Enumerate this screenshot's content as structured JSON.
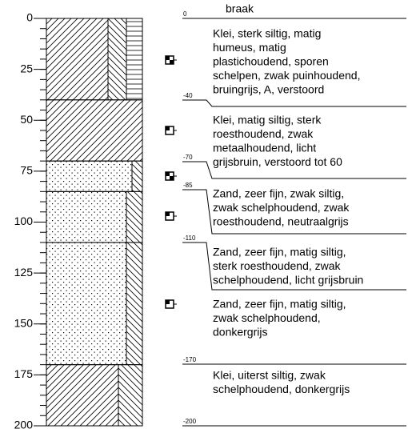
{
  "axis_ticks": [
    0,
    25,
    50,
    75,
    100,
    125,
    150,
    175,
    200
  ],
  "top_label": "braak",
  "depth_labels": [
    "0",
    "-40",
    "-70",
    "-85",
    "-110",
    "-170",
    "-200"
  ],
  "descriptions": [
    [
      "Klei, sterk siltig, matig",
      "humeus, matig",
      "plastichoudend, sporen",
      "schelpen, zwak puinhoudend,",
      "bruingrijs, A, verstoord"
    ],
    [
      "Klei, matig siltig, sterk",
      "roesthoudend, zwak",
      "metaalhoudend, licht",
      "grijsbruin, verstoord tot 60"
    ],
    [
      "Zand, zeer fijn, zwak siltig,",
      "zwak schelphoudend, zwak",
      "roesthoudend, neutraalgrijs"
    ],
    [
      "Zand, zeer fijn, matig siltig,",
      "sterk roesthoudend, zwak",
      "schelphoudend, licht grijsbruin"
    ],
    [
      "Zand, zeer fijn, matig siltig,",
      "zwak schelphoudend,",
      "donkergrijs"
    ],
    [
      "Klei, uiterst siltig, zwak",
      "schelphoudend, donkergrijs"
    ]
  ]
}
